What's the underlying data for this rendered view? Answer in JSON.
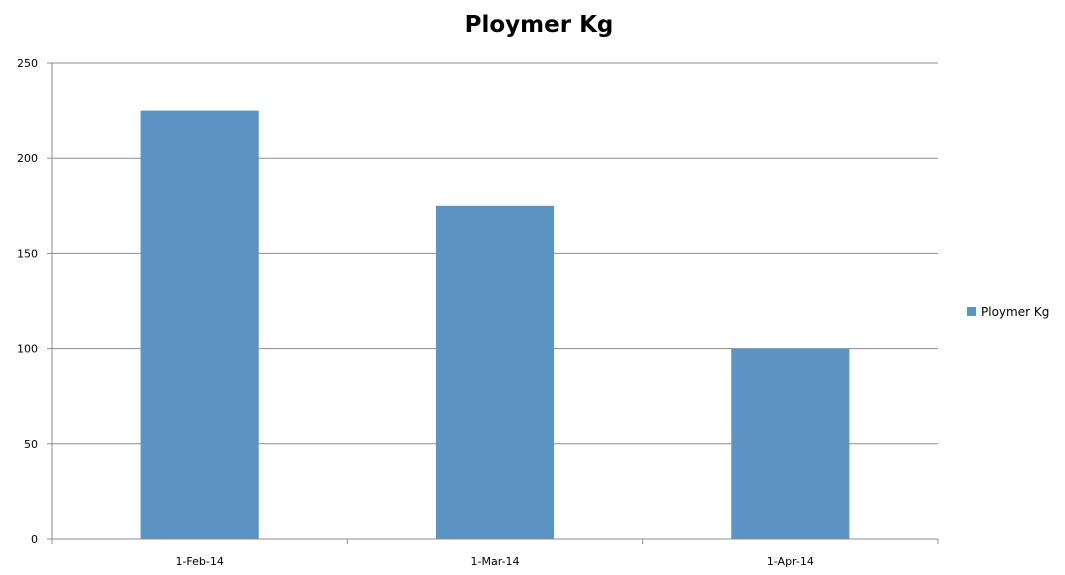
{
  "chart_data": {
    "type": "bar",
    "title": "Ploymer Kg",
    "xlabel": "",
    "ylabel": "",
    "categories": [
      "1-Feb-14",
      "1-Mar-14",
      "1-Apr-14"
    ],
    "series": [
      {
        "name": "Ploymer Kg",
        "values": [
          225,
          175,
          100
        ],
        "color": "#5b93c5"
      }
    ],
    "ylim": [
      0,
      250
    ],
    "yticks": [
      "0",
      "50",
      "100",
      "150",
      "200",
      "250"
    ],
    "grid": true,
    "legend_position": "right"
  }
}
